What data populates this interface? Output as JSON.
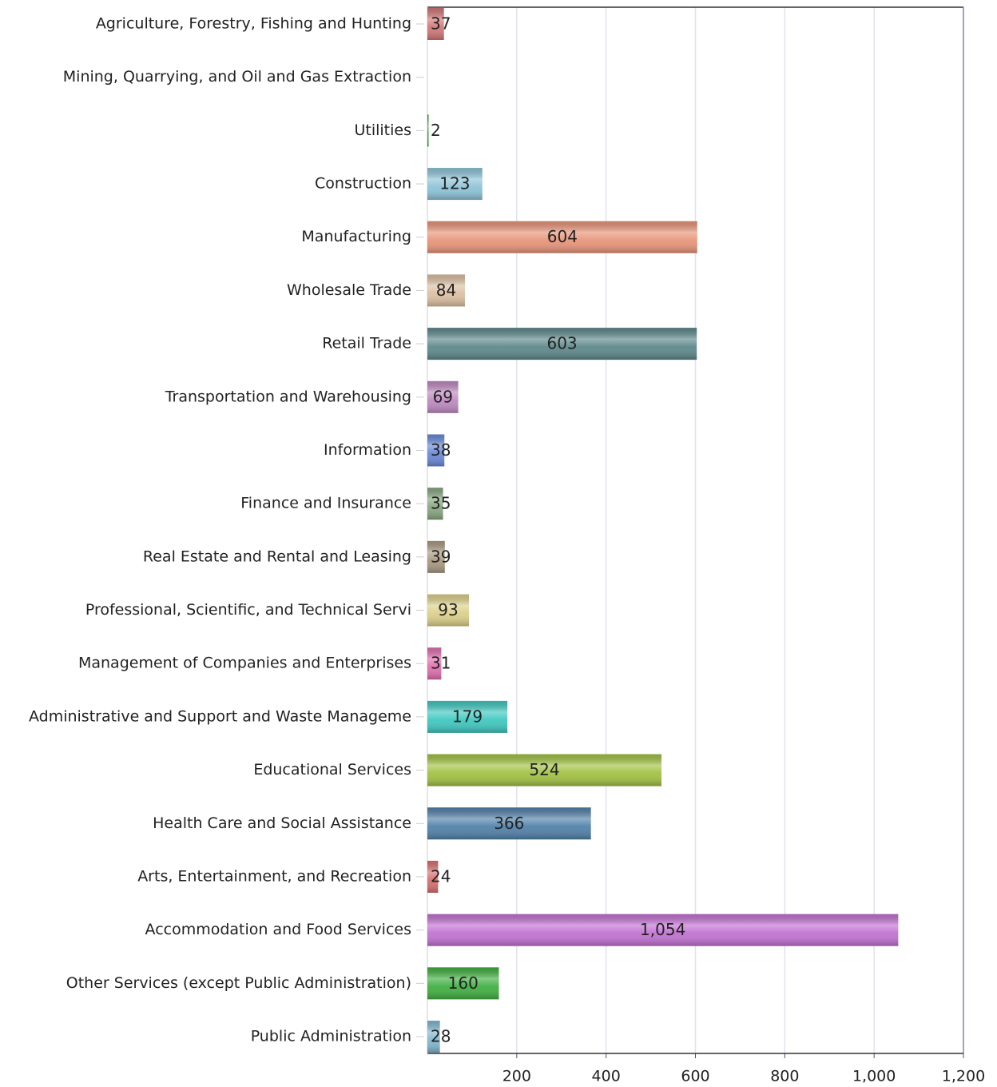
{
  "chart_data": {
    "type": "barh",
    "categories": [
      "Agriculture, Forestry, Fishing and Hunting",
      "Mining, Quarrying, and Oil and Gas Extraction",
      "Utilities",
      "Construction",
      "Manufacturing",
      "Wholesale Trade",
      "Retail Trade",
      "Transportation and Warehousing",
      "Information",
      "Finance and Insurance",
      "Real Estate and Rental and Leasing",
      "Professional, Scientific, and Technical Servi",
      "Management of Companies and Enterprises",
      "Administrative and Support and Waste Manageme",
      "Educational Services",
      "Health Care and Social Assistance",
      "Arts, Entertainment, and Recreation",
      "Accommodation and Food Services",
      "Other Services (except Public Administration)",
      "Public Administration"
    ],
    "values": [
      37,
      null,
      2,
      123,
      604,
      84,
      603,
      69,
      38,
      35,
      39,
      93,
      31,
      179,
      524,
      366,
      24,
      1054,
      160,
      28
    ],
    "value_labels": [
      "37",
      null,
      "2",
      "123",
      "604",
      "84",
      "603",
      "69",
      "38",
      "35",
      "39",
      "93",
      "31",
      "179",
      "524",
      "366",
      "24",
      "1,054",
      "160",
      "28"
    ],
    "colors": [
      "#d27878",
      "#888888",
      "#3c9c3c",
      "#8ec4d8",
      "#e8957a",
      "#dcc0a2",
      "#5e898b",
      "#c08ac2",
      "#6a8ad8",
      "#88a882",
      "#aa9a82",
      "#dcd08a",
      "#e070b0",
      "#40c8c0",
      "#a2c244",
      "#5282aa",
      "#d87070",
      "#c272d2",
      "#42b042",
      "#82b8d0"
    ],
    "xlim": [
      0,
      1200
    ],
    "xticks": [
      200,
      400,
      600,
      800,
      {
        "value": 1000,
        "label": "1,000"
      },
      {
        "value": 1200,
        "label": "1,200"
      }
    ],
    "grid": true
  }
}
